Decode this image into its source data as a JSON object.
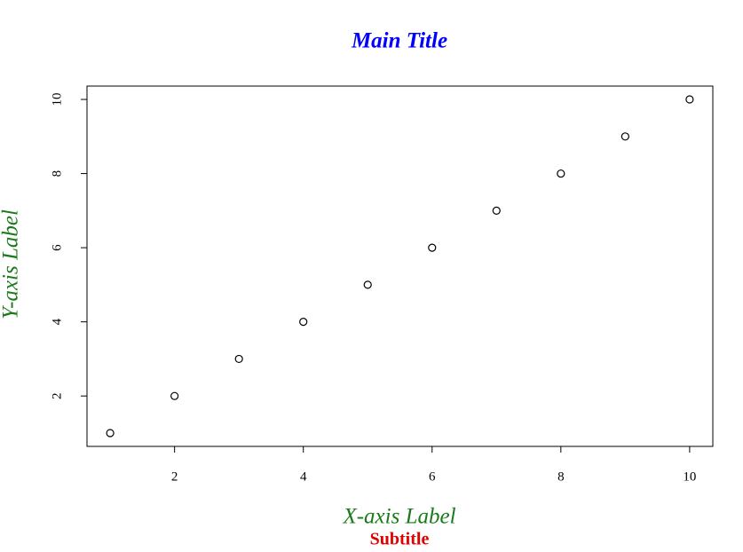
{
  "chart_data": {
    "type": "scatter",
    "title": "Main Title",
    "subtitle": "Subtitle",
    "x_label": "X-axis Label",
    "y_label": "Y-axis Label",
    "title_color": "#0000ff",
    "label_color": "#1a7a1a",
    "subtitle_color": "#e00000",
    "x": [
      1,
      2,
      3,
      4,
      5,
      6,
      7,
      8,
      9,
      10
    ],
    "values": [
      1,
      2,
      3,
      4,
      5,
      6,
      7,
      8,
      9,
      10
    ],
    "color": "#000000",
    "xlim": [
      0.64,
      10.36
    ],
    "ylim": [
      0.64,
      10.36
    ],
    "xticks": [
      2,
      4,
      6,
      8,
      10
    ],
    "yticks": [
      2,
      4,
      6,
      8,
      10
    ]
  }
}
